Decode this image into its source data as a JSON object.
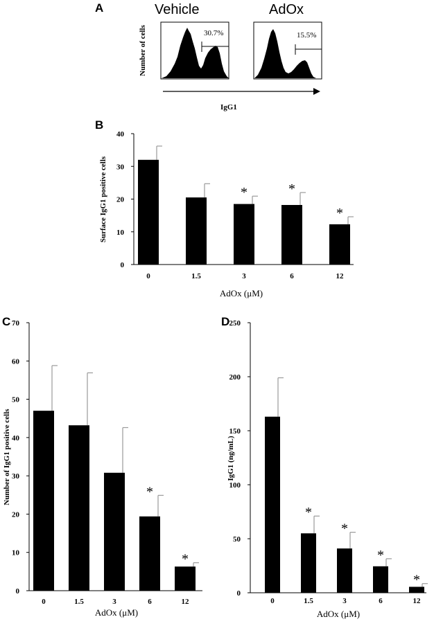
{
  "panel_a": {
    "letter": "A",
    "ylabel": "Number of cells",
    "xlabel": "IgG1",
    "histograms": [
      {
        "label": "Vehicle",
        "percent": "30.7%"
      },
      {
        "label": "AdOx",
        "percent": "15.5%"
      }
    ]
  },
  "chart_data": [
    {
      "letter": "B",
      "type": "bar",
      "categories": [
        "0",
        "1.5",
        "3",
        "6",
        "12"
      ],
      "values": [
        32,
        20.5,
        18.5,
        18.2,
        12.3
      ],
      "errors": [
        4.2,
        4.2,
        2.4,
        3.8,
        2.3
      ],
      "significant": [
        "",
        "",
        "*",
        "*",
        "*"
      ],
      "ylabel": "Surface IgG1 positive cells",
      "xlabel": "AdOx (μM)",
      "ylim": [
        0,
        40
      ],
      "yticks": [
        "0",
        "10",
        "20",
        "30",
        "40"
      ],
      "grid": false
    },
    {
      "letter": "C",
      "type": "bar",
      "categories": [
        "0",
        "1.5",
        "3",
        "6",
        "12"
      ],
      "values": [
        47,
        43.2,
        30.8,
        19.4,
        6.3
      ],
      "errors": [
        11.8,
        13.7,
        11.8,
        5.5,
        1.0
      ],
      "significant": [
        "",
        "",
        "",
        "*",
        "*"
      ],
      "ylabel": "Number of IgG1 positive cells",
      "xlabel": "AdOx (μM)",
      "ylim": [
        0,
        70
      ],
      "yticks": [
        "0",
        "10",
        "20",
        "30",
        "40",
        "50",
        "60",
        "70"
      ],
      "grid": false
    },
    {
      "letter": "D",
      "type": "bar",
      "categories": [
        "0",
        "1.5",
        "3",
        "6",
        "12"
      ],
      "values": [
        163,
        55,
        41,
        24.5,
        5.5
      ],
      "errors": [
        36,
        16,
        15,
        7,
        3
      ],
      "significant": [
        "",
        "*",
        "*",
        "*",
        "*"
      ],
      "ylabel": "IgG1 (ng/mL)",
      "xlabel": "AdOx (μM)",
      "ylim": [
        0,
        250
      ],
      "yticks": [
        "0",
        "50",
        "100",
        "150",
        "200",
        "250"
      ],
      "grid": false
    }
  ]
}
